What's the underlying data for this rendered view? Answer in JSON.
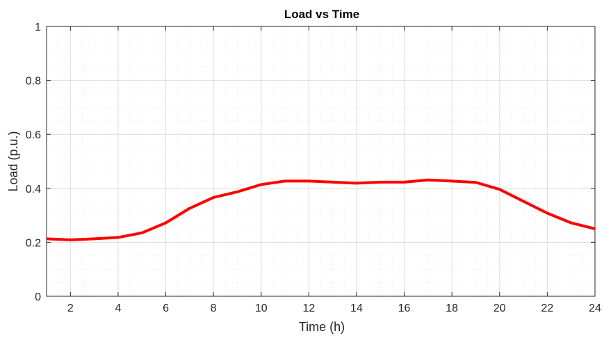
{
  "chart_data": {
    "type": "line",
    "title": "Load vs Time",
    "xlabel": "Time (h)",
    "ylabel": "Load (p.u.)",
    "xlim": [
      1,
      24
    ],
    "ylim": [
      0,
      1
    ],
    "xticks": [
      2,
      4,
      6,
      8,
      10,
      12,
      14,
      16,
      18,
      20,
      22,
      24
    ],
    "yticks": [
      0,
      0.2,
      0.4,
      0.6,
      0.8,
      1
    ],
    "ytick_labels": [
      "0",
      "0.2",
      "0.4",
      "0.6",
      "0.8",
      "1"
    ],
    "grid": true,
    "minor_grid": true,
    "series": [
      {
        "color": "#ff0000",
        "x": [
          1,
          2,
          3,
          4,
          5,
          6,
          7,
          8,
          9,
          10,
          11,
          12,
          13,
          14,
          15,
          16,
          17,
          18,
          19,
          20,
          21,
          22,
          23,
          24
        ],
        "y": [
          0.213,
          0.209,
          0.213,
          0.218,
          0.235,
          0.272,
          0.326,
          0.366,
          0.387,
          0.414,
          0.427,
          0.427,
          0.423,
          0.419,
          0.423,
          0.423,
          0.431,
          0.427,
          0.422,
          0.396,
          0.352,
          0.308,
          0.272,
          0.25
        ]
      }
    ]
  }
}
